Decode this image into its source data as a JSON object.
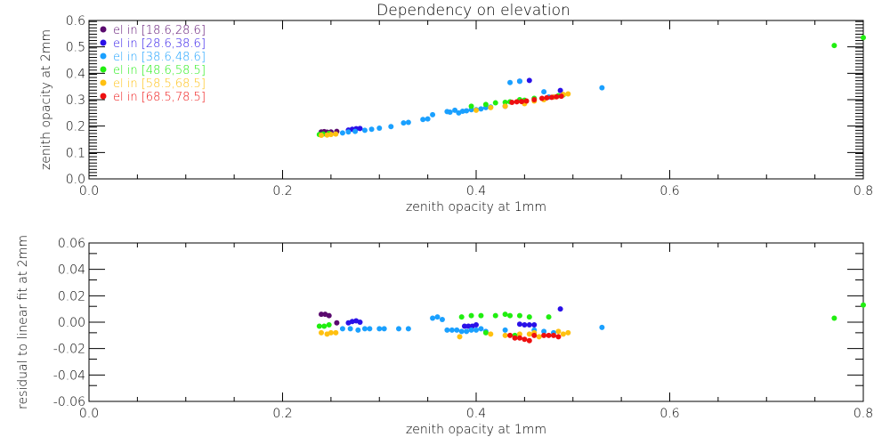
{
  "chart_data": [
    {
      "type": "scatter",
      "title": "Dependency on elevation",
      "xlabel": "zenith opacity at 1mm",
      "ylabel": "zenith opacity at 2mm",
      "xlim": [
        0.0,
        0.8
      ],
      "ylim": [
        0.0,
        0.6
      ],
      "xticks": [
        "0.0",
        "0.2",
        "0.4",
        "0.6",
        "0.8"
      ],
      "xtick_values": [
        0.0,
        0.2,
        0.4,
        0.6,
        0.8
      ],
      "yticks": [
        "0.0",
        "0.1",
        "0.2",
        "0.3",
        "0.4",
        "0.5",
        "0.6"
      ],
      "ytick_values": [
        0.0,
        0.1,
        0.2,
        0.3,
        0.4,
        0.5,
        0.6
      ],
      "legend_position": "top-left",
      "series": [
        {
          "name": "el in [18.6,28.6]",
          "color": "#5a0a6e",
          "x": [
            0.24,
            0.243,
            0.246,
            0.25,
            0.256
          ],
          "y": [
            0.178,
            0.179,
            0.177,
            0.178,
            0.18
          ]
        },
        {
          "name": "el in [28.6,38.6]",
          "color": "#2a10e8",
          "x": [
            0.268,
            0.272,
            0.276,
            0.28,
            0.43,
            0.445,
            0.455,
            0.487
          ],
          "y": [
            0.185,
            0.188,
            0.19,
            0.191,
            0.275,
            0.37,
            0.373,
            0.335
          ]
        },
        {
          "name": "el in [38.6,48.6]",
          "color": "#1aa0ff",
          "x": [
            0.262,
            0.268,
            0.275,
            0.285,
            0.292,
            0.3,
            0.312,
            0.325,
            0.33,
            0.345,
            0.35,
            0.355,
            0.37,
            0.373,
            0.378,
            0.382,
            0.386,
            0.39,
            0.395,
            0.4,
            0.405,
            0.41,
            0.415,
            0.435,
            0.445,
            0.47,
            0.475,
            0.48,
            0.53
          ],
          "y": [
            0.174,
            0.178,
            0.18,
            0.184,
            0.188,
            0.192,
            0.198,
            0.212,
            0.214,
            0.225,
            0.227,
            0.243,
            0.255,
            0.253,
            0.26,
            0.25,
            0.256,
            0.258,
            0.262,
            0.262,
            0.265,
            0.27,
            0.272,
            0.365,
            0.37,
            0.33,
            0.31,
            0.31,
            0.345
          ]
        },
        {
          "name": "el in [48.6,58.5]",
          "color": "#20ee10",
          "x": [
            0.238,
            0.242,
            0.248,
            0.395,
            0.41,
            0.42,
            0.43,
            0.435,
            0.445,
            0.45,
            0.46,
            0.485,
            0.49,
            0.77,
            0.8
          ],
          "y": [
            0.168,
            0.17,
            0.172,
            0.275,
            0.282,
            0.288,
            0.29,
            0.292,
            0.3,
            0.298,
            0.305,
            0.315,
            0.318,
            0.505,
            0.535
          ]
        },
        {
          "name": "el in [58.5,68.5]",
          "color": "#ffc010",
          "x": [
            0.24,
            0.246,
            0.25,
            0.255,
            0.4,
            0.415,
            0.43,
            0.45,
            0.46,
            0.47,
            0.48,
            0.49,
            0.495
          ],
          "y": [
            0.165,
            0.166,
            0.168,
            0.17,
            0.26,
            0.27,
            0.275,
            0.285,
            0.295,
            0.3,
            0.31,
            0.32,
            0.322
          ]
        },
        {
          "name": "el in [68.5,78.5]",
          "color": "#ee1010",
          "x": [
            0.437,
            0.442,
            0.447,
            0.452,
            0.46,
            0.468,
            0.473,
            0.478,
            0.483,
            0.488
          ],
          "y": [
            0.29,
            0.292,
            0.293,
            0.295,
            0.3,
            0.305,
            0.307,
            0.309,
            0.311,
            0.313
          ]
        }
      ]
    },
    {
      "type": "scatter",
      "title": "",
      "xlabel": "zenith opacity at 1mm",
      "ylabel": "residual to linear fit at 2mm",
      "xlim": [
        0.0,
        0.8
      ],
      "ylim": [
        -0.06,
        0.06
      ],
      "xticks": [
        "0.0",
        "0.2",
        "0.4",
        "0.6",
        "0.8"
      ],
      "xtick_values": [
        0.0,
        0.2,
        0.4,
        0.6,
        0.8
      ],
      "yticks": [
        "-0.06",
        "-0.04",
        "-0.02",
        "0.00",
        "0.02",
        "0.04",
        "0.06"
      ],
      "ytick_values": [
        -0.06,
        -0.04,
        -0.02,
        0.0,
        0.02,
        0.04,
        0.06
      ],
      "series": [
        {
          "name": "el in [18.6,28.6]",
          "color": "#5a0a6e",
          "x": [
            0.24,
            0.244,
            0.248,
            0.256
          ],
          "y": [
            0.006,
            0.006,
            0.005,
            -0.0005
          ]
        },
        {
          "name": "el in [28.6,38.6]",
          "color": "#2a10e8",
          "x": [
            0.268,
            0.272,
            0.276,
            0.28,
            0.388,
            0.392,
            0.396,
            0.4,
            0.445,
            0.45,
            0.455,
            0.46,
            0.487
          ],
          "y": [
            -0.0005,
            0.0005,
            0.001,
            0,
            -0.003,
            -0.003,
            -0.003,
            -0.002,
            -0.0015,
            -0.002,
            -0.002,
            -0.002,
            0.01
          ]
        },
        {
          "name": "el in [38.6,48.6]",
          "color": "#1aa0ff",
          "x": [
            0.262,
            0.27,
            0.278,
            0.285,
            0.29,
            0.3,
            0.305,
            0.32,
            0.33,
            0.355,
            0.36,
            0.365,
            0.37,
            0.375,
            0.38,
            0.385,
            0.39,
            0.395,
            0.4,
            0.405,
            0.41,
            0.43,
            0.46,
            0.47,
            0.48,
            0.53
          ],
          "y": [
            -0.005,
            -0.005,
            -0.006,
            -0.005,
            -0.005,
            -0.005,
            -0.005,
            -0.005,
            -0.005,
            0.003,
            0.004,
            0.002,
            -0.006,
            -0.006,
            -0.006,
            -0.007,
            -0.007,
            -0.006,
            -0.006,
            -0.005,
            -0.007,
            -0.006,
            -0.006,
            -0.007,
            -0.008,
            -0.004
          ]
        },
        {
          "name": "el in [48.6,58.5]",
          "color": "#20ee10",
          "x": [
            0.238,
            0.243,
            0.248,
            0.395,
            0.405,
            0.42,
            0.43,
            0.435,
            0.445,
            0.455,
            0.475,
            0.385,
            0.41,
            0.44,
            0.77,
            0.8
          ],
          "y": [
            -0.003,
            -0.003,
            -0.002,
            0.005,
            0.005,
            0.005,
            0.006,
            0.005,
            0.005,
            0.004,
            0.004,
            0.004,
            -0.008,
            -0.01,
            0.003,
            0.013
          ]
        },
        {
          "name": "el in [58.5,68.5]",
          "color": "#ffc010",
          "x": [
            0.24,
            0.246,
            0.25,
            0.255,
            0.383,
            0.415,
            0.43,
            0.445,
            0.455,
            0.46,
            0.465,
            0.485,
            0.49,
            0.495
          ],
          "y": [
            -0.008,
            -0.009,
            -0.008,
            -0.008,
            -0.011,
            -0.009,
            -0.01,
            -0.009,
            -0.009,
            -0.008,
            -0.011,
            -0.007,
            -0.009,
            -0.008
          ]
        },
        {
          "name": "el in [68.5,78.5]",
          "color": "#ee1010",
          "x": [
            0.435,
            0.44,
            0.445,
            0.45,
            0.455,
            0.46,
            0.47,
            0.475,
            0.48,
            0.485
          ],
          "y": [
            -0.01,
            -0.012,
            -0.012,
            -0.013,
            -0.014,
            -0.01,
            -0.01,
            -0.01,
            -0.01,
            -0.011
          ]
        }
      ]
    }
  ]
}
